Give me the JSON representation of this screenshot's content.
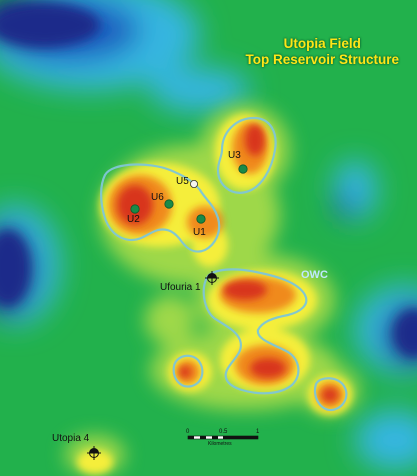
{
  "map": {
    "title_line1": "Utopia Field",
    "title_line2": "Top Reservoir Structure",
    "contact_label": "OWC",
    "wells": [
      {
        "id": "U3",
        "label": "U3"
      },
      {
        "id": "U5",
        "label": "U5"
      },
      {
        "id": "U6",
        "label": "U6"
      },
      {
        "id": "U2",
        "label": "U2"
      },
      {
        "id": "U1",
        "label": "U1"
      },
      {
        "id": "ufouria1",
        "label": "Ufouria 1"
      },
      {
        "id": "utopia4",
        "label": "Utopia 4"
      }
    ],
    "scale": {
      "tick_0": "0",
      "tick_mid": "0.5",
      "tick_1": "1",
      "unit": "Kilometres"
    },
    "colors": {
      "deep": "#1f2a8a",
      "low": "#1a5fc0",
      "mid_low": "#35b6e0",
      "background": "#22b14c",
      "mid": "#9ed84a",
      "yellow": "#f5ee3a",
      "orange": "#f08a1f",
      "high": "#d8361c",
      "contour": "#7fc6d6",
      "well": "#1a8a48",
      "title": "#ffe617"
    }
  }
}
